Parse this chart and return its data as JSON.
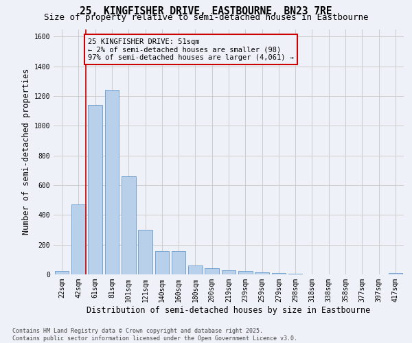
{
  "title": "25, KINGFISHER DRIVE, EASTBOURNE, BN23 7RE",
  "subtitle": "Size of property relative to semi-detached houses in Eastbourne",
  "xlabel": "Distribution of semi-detached houses by size in Eastbourne",
  "ylabel": "Number of semi-detached properties",
  "categories": [
    "22sqm",
    "42sqm",
    "61sqm",
    "81sqm",
    "101sqm",
    "121sqm",
    "140sqm",
    "160sqm",
    "180sqm",
    "200sqm",
    "219sqm",
    "239sqm",
    "259sqm",
    "279sqm",
    "298sqm",
    "318sqm",
    "338sqm",
    "358sqm",
    "377sqm",
    "397sqm",
    "417sqm"
  ],
  "values": [
    22,
    470,
    1140,
    1240,
    660,
    300,
    158,
    158,
    60,
    40,
    30,
    25,
    15,
    10,
    5,
    2,
    1,
    1,
    0,
    0,
    8
  ],
  "bar_color": "#b8d0ea",
  "bar_edge_color": "#6699cc",
  "marker_line_color": "#cc0000",
  "annotation_box_edge_color": "#cc0000",
  "marker_label_line1": "25 KINGFISHER DRIVE: 51sqm",
  "marker_label_line2": "← 2% of semi-detached houses are smaller (98)",
  "marker_label_line3": "97% of semi-detached houses are larger (4,061) →",
  "ylim": [
    0,
    1650
  ],
  "yticks": [
    0,
    200,
    400,
    600,
    800,
    1000,
    1200,
    1400,
    1600
  ],
  "grid_color": "#cccccc",
  "bg_color": "#eef2f8",
  "footnote": "Contains HM Land Registry data © Crown copyright and database right 2025.\nContains public sector information licensed under the Open Government Licence v3.0.",
  "title_fontsize": 10.5,
  "subtitle_fontsize": 9,
  "axis_label_fontsize": 8.5,
  "tick_fontsize": 7,
  "annotation_fontsize": 7.5,
  "footnote_fontsize": 6
}
